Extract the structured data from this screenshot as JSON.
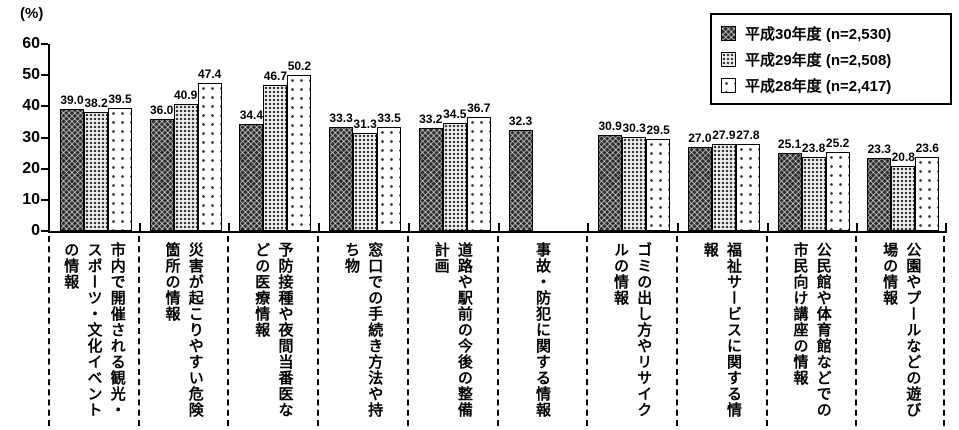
{
  "chart_data": {
    "type": "bar",
    "unit_label": "(%)",
    "ylim": [
      0,
      60
    ],
    "y_ticks": [
      0,
      10,
      20,
      30,
      40,
      50,
      60
    ],
    "grid": false,
    "legend_position": "top-right",
    "categories": [
      "市内で開催される観光・スポーツ・文化イベントの情報",
      "災害が起こりやすい危険箇所の情報",
      "予防接種や夜間当番医などの医療情報",
      "窓口での手続き方法や持ち物",
      "道路や駅前の今後の整備計画",
      "事故・防犯に関する情報",
      "ゴミの出し方やリサイクルの情報",
      "福祉サービスに関する情報",
      "公民館や体育館などでの市民向け講座の情報",
      "公園やプールなどの遊び場の情報"
    ],
    "series": [
      {
        "name": "平成30年度",
        "n_label": "(n=2,530)",
        "pattern": "dark-crosshatch",
        "values": [
          39.0,
          36.0,
          34.4,
          33.3,
          33.2,
          32.3,
          30.9,
          27.0,
          25.1,
          23.3
        ]
      },
      {
        "name": "平成29年度",
        "n_label": "(n=2,508)",
        "pattern": "dense-dots",
        "values": [
          38.2,
          40.9,
          46.7,
          31.3,
          34.5,
          null,
          30.3,
          27.9,
          23.8,
          20.8
        ]
      },
      {
        "name": "平成28年度",
        "n_label": "(n=2,417)",
        "pattern": "sparse-dots",
        "values": [
          39.5,
          47.4,
          50.2,
          33.5,
          36.7,
          null,
          29.5,
          27.8,
          25.2,
          23.6
        ]
      }
    ]
  },
  "colors": {
    "axis": "#000000",
    "bar_border": "#000000",
    "dark_fill": "#2e2e2e",
    "mid_fill": "#f0f0f0",
    "light_fill": "#ffffff",
    "text": "#000000",
    "background": "#ffffff"
  }
}
